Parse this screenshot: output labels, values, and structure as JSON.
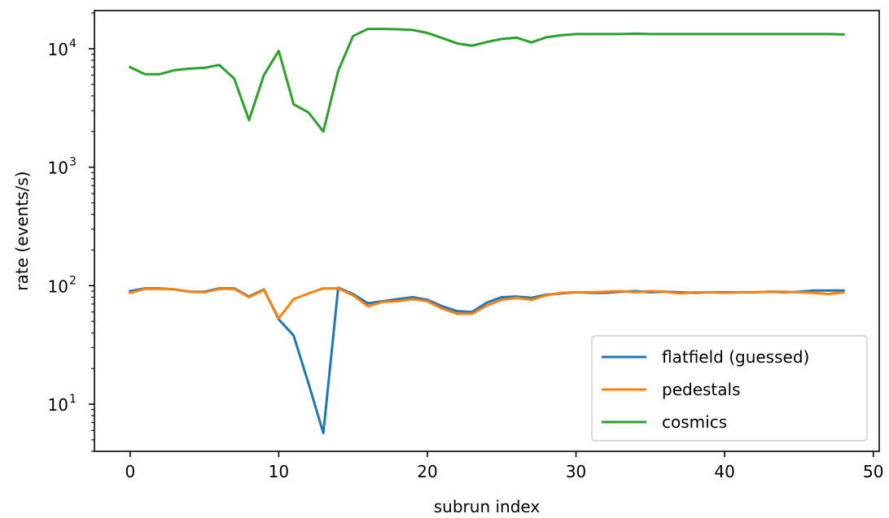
{
  "chart_data": {
    "type": "line",
    "xlabel": "subrun index",
    "ylabel": "rate (events/s)",
    "xlim": [
      -2.4,
      50.4
    ],
    "ylim": [
      4,
      21000
    ],
    "yscale": "log",
    "x_ticks": [
      0,
      10,
      20,
      30,
      40,
      50
    ],
    "x_tick_labels": [
      "0",
      "10",
      "20",
      "30",
      "40",
      "50"
    ],
    "y_ticks": [
      {
        "value": 10,
        "base": "10",
        "exp": "1"
      },
      {
        "value": 100,
        "base": "10",
        "exp": "2"
      },
      {
        "value": 1000,
        "base": "10",
        "exp": "3"
      },
      {
        "value": 10000,
        "base": "10",
        "exp": "4"
      }
    ],
    "grid": false,
    "legend_position": "lower right",
    "x": [
      0,
      1,
      2,
      3,
      4,
      5,
      6,
      7,
      8,
      9,
      10,
      11,
      12,
      13,
      14,
      15,
      16,
      17,
      18,
      19,
      20,
      21,
      22,
      23,
      24,
      25,
      26,
      27,
      28,
      29,
      30,
      31,
      32,
      33,
      34,
      35,
      36,
      37,
      38,
      39,
      40,
      41,
      42,
      43,
      44,
      45,
      46,
      47,
      48
    ],
    "series": [
      {
        "name": "flatfield (guessed)",
        "color": "#1f77b4",
        "values": [
          90,
          95,
          95,
          93,
          89,
          89,
          95,
          95,
          81,
          93,
          52,
          38,
          15,
          5.7,
          96,
          85,
          71,
          74,
          77,
          80,
          76,
          67,
          61,
          60,
          72,
          80,
          81,
          79,
          84,
          86,
          88,
          87,
          87,
          89,
          90,
          88,
          89,
          88,
          87,
          88,
          88,
          88,
          88,
          89,
          88,
          89,
          91,
          91,
          91
        ]
      },
      {
        "name": "pedestals",
        "color": "#ff7f0e",
        "values": [
          87,
          94,
          94,
          93,
          89,
          88,
          94,
          94,
          80,
          92,
          53,
          77,
          86,
          95,
          95,
          83,
          67,
          73,
          74,
          77,
          74,
          64,
          58,
          58,
          68,
          76,
          79,
          76,
          83,
          87,
          88,
          88,
          89,
          90,
          88,
          90,
          89,
          86,
          88,
          88,
          87,
          88,
          88,
          89,
          89,
          88,
          87,
          85,
          88
        ]
      },
      {
        "name": "cosmics",
        "color": "#2ca02c",
        "values": [
          7000,
          6100,
          6100,
          6600,
          6800,
          6900,
          7300,
          5600,
          2500,
          6000,
          9600,
          3400,
          2900,
          2000,
          6500,
          12800,
          14700,
          14700,
          14600,
          14400,
          13600,
          12300,
          11100,
          10600,
          11400,
          12100,
          12400,
          11300,
          12500,
          13000,
          13300,
          13300,
          13300,
          13300,
          13400,
          13300,
          13300,
          13300,
          13300,
          13300,
          13300,
          13300,
          13300,
          13300,
          13300,
          13300,
          13300,
          13300,
          13200
        ]
      }
    ]
  }
}
